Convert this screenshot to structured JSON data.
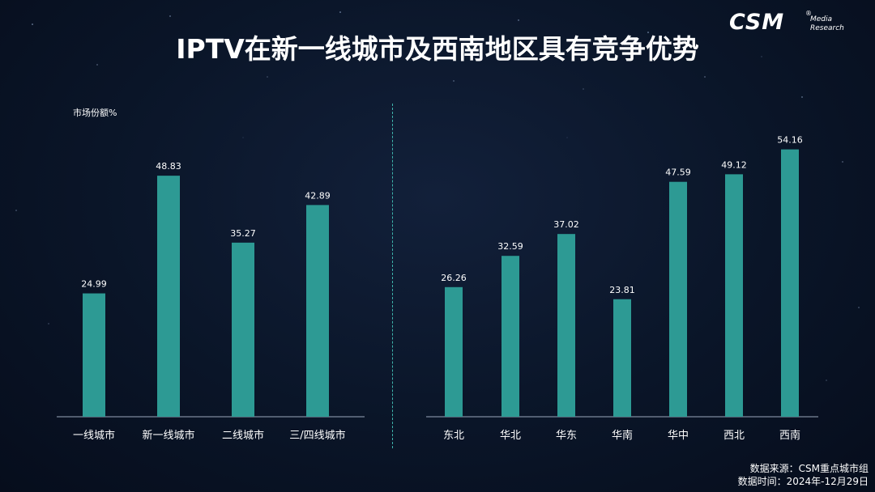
{
  "title": "IPTV在新一线城市及西南地区具有竞争优势",
  "logo": {
    "main": "CSM",
    "registered": "®",
    "sub1": "Media",
    "sub2": "Research"
  },
  "source": {
    "line1": "数据来源：CSM重点城市组",
    "line2": "数据时间：2024年-12月29日"
  },
  "colors": {
    "bar": "#2d9a94",
    "divider": "#3fb5ad",
    "background": "#0a1528"
  },
  "chart_data": [
    {
      "type": "bar",
      "title": "",
      "xlabel": "",
      "ylabel": "市场份额%",
      "ylim": [
        0,
        58
      ],
      "grid": false,
      "categories": [
        "一线城市",
        "新一线城市",
        "二线城市",
        "三/四线城市"
      ],
      "values": [
        24.99,
        48.83,
        35.27,
        42.89
      ],
      "value_labels": [
        "24.99",
        "48.83",
        "35.27",
        "42.89"
      ]
    },
    {
      "type": "bar",
      "title": "",
      "xlabel": "",
      "ylabel": "",
      "ylim": [
        0,
        58
      ],
      "grid": false,
      "categories": [
        "东北",
        "华北",
        "华东",
        "华南",
        "华中",
        "西北",
        "西南"
      ],
      "values": [
        26.26,
        32.59,
        37.02,
        23.81,
        47.59,
        49.12,
        54.16
      ],
      "value_labels": [
        "26.26",
        "32.59",
        "37.02",
        "23.81",
        "47.59",
        "49.12",
        "54.16"
      ]
    }
  ]
}
